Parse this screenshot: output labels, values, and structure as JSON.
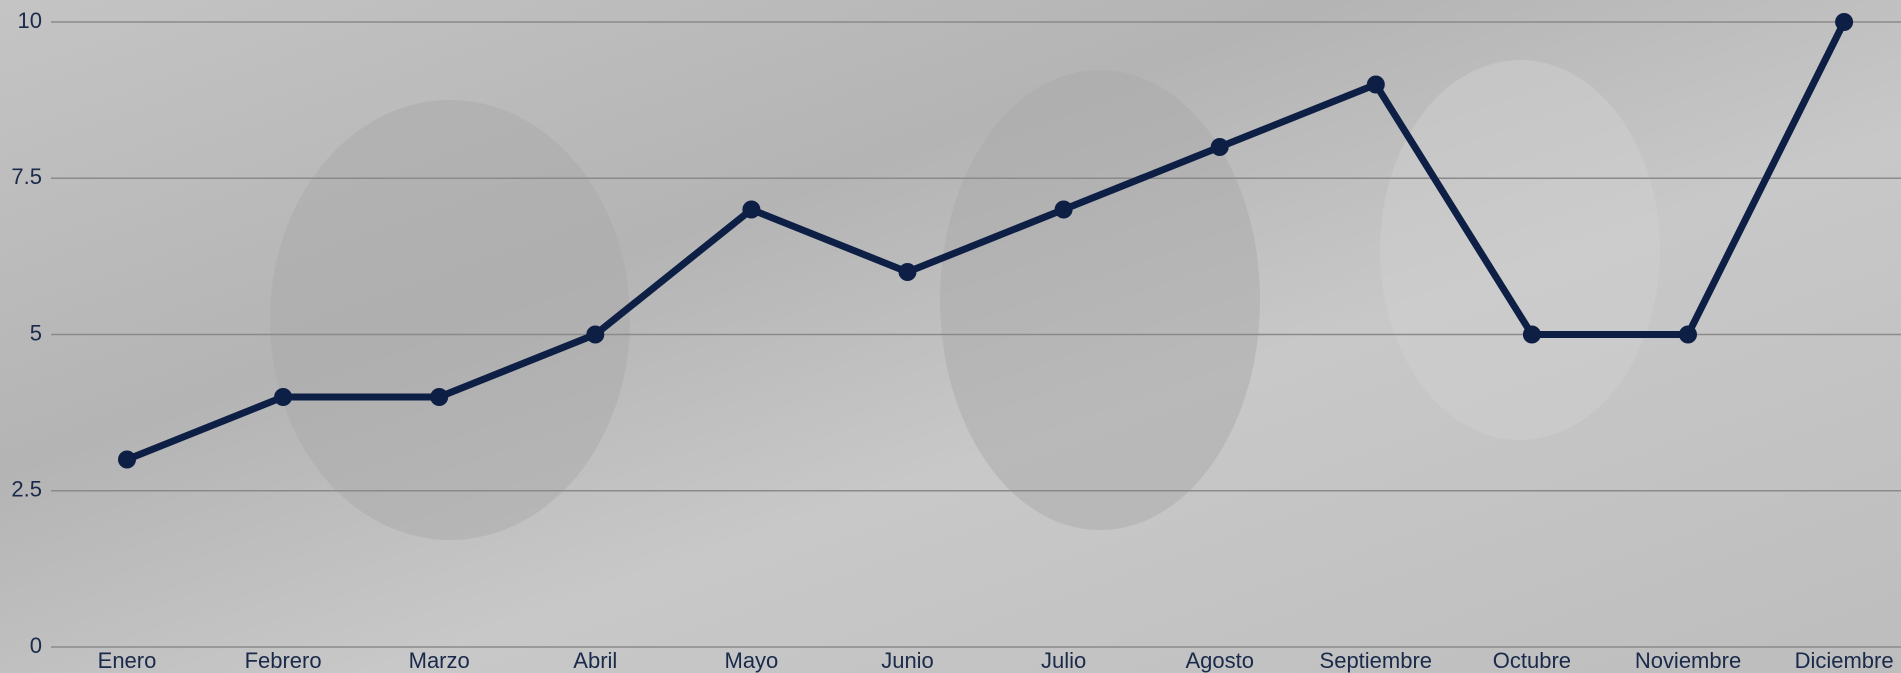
{
  "chart_data": {
    "type": "line",
    "categories": [
      "Enero",
      "Febrero",
      "Marzo",
      "Abril",
      "Mayo",
      "Junio",
      "Julio",
      "Agosto",
      "Septiembre",
      "Octubre",
      "Noviembre",
      "Diciembre"
    ],
    "values": [
      3,
      4,
      4,
      5,
      7,
      6,
      7,
      8,
      9,
      5,
      5,
      10
    ],
    "color": "#0d1f45",
    "ylim": [
      0,
      10
    ],
    "yticks": [
      0,
      2.5,
      5,
      7.5,
      10
    ],
    "grid": true
  }
}
